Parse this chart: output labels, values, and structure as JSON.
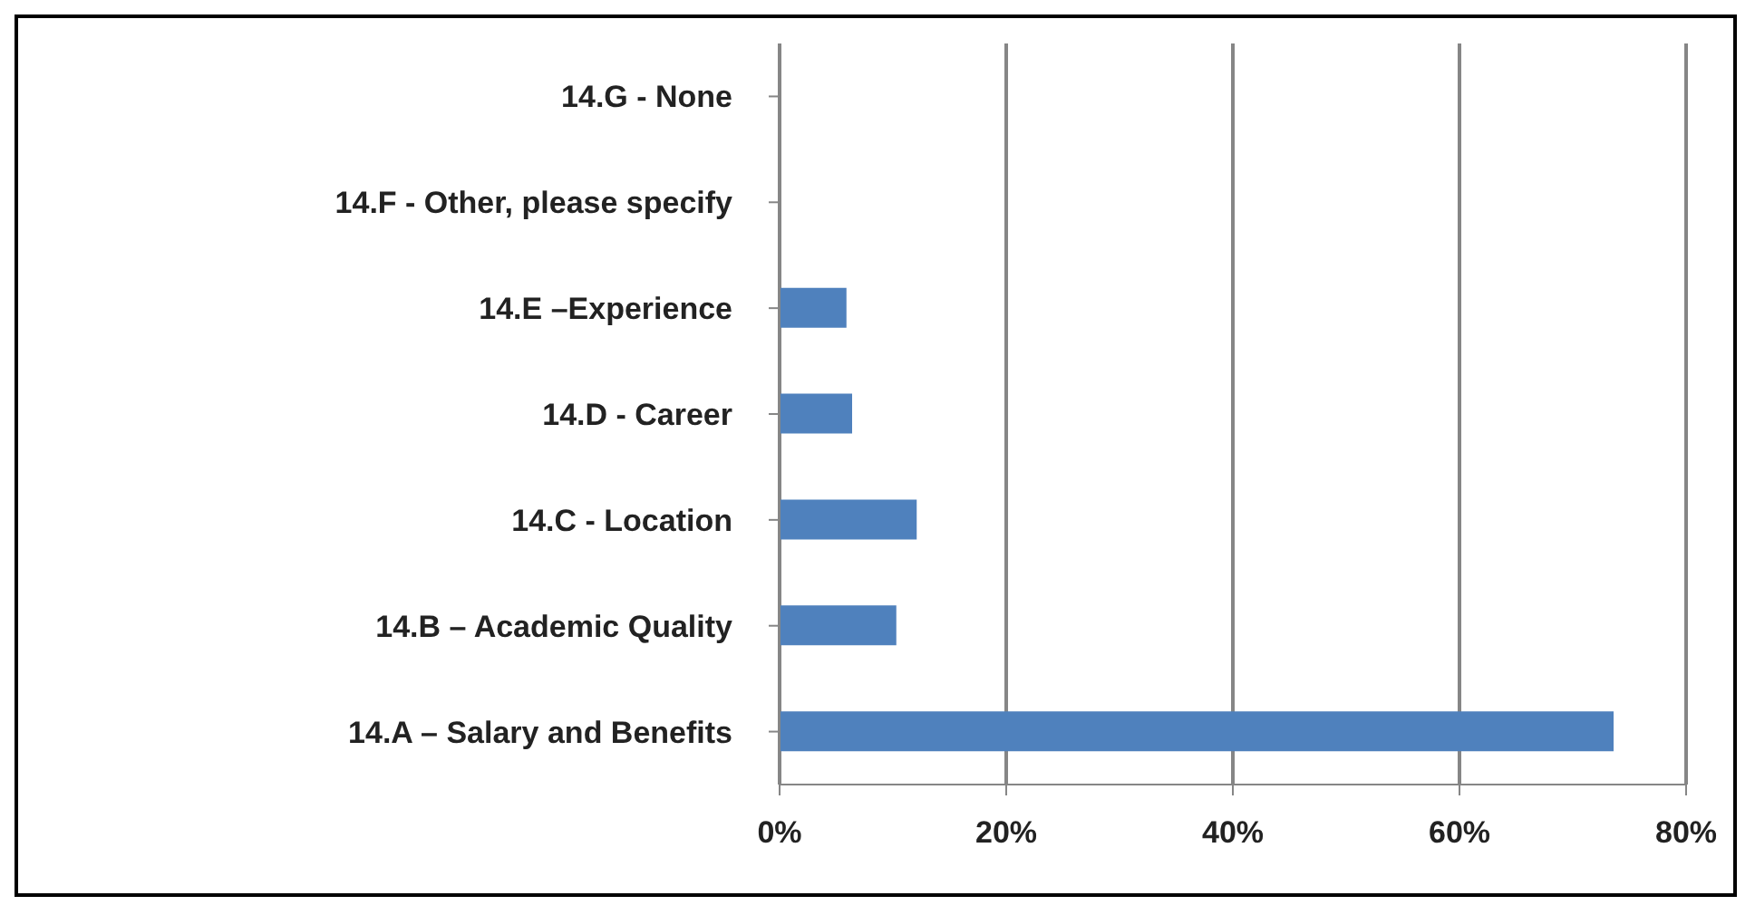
{
  "chart_data": {
    "type": "bar",
    "orientation": "horizontal",
    "categories": [
      "14.G - None",
      "14.F - Other, please specify",
      "14.E –Experience",
      "14.D - Career",
      "14.C - Location",
      "14.B – Academic Quality",
      "14.A – Salary and Benefits"
    ],
    "values": [
      0,
      0,
      5.9,
      6.4,
      12.1,
      10.3,
      73.6
    ],
    "color": "#4f81bd",
    "xlim": [
      0,
      80
    ],
    "xticks": [
      {
        "value": 0,
        "label": "0%"
      },
      {
        "value": 20,
        "label": "20%"
      },
      {
        "value": 40,
        "label": "40%"
      },
      {
        "value": 60,
        "label": "60%"
      },
      {
        "value": 80,
        "label": "80%"
      }
    ],
    "grid": "x",
    "legend": false
  }
}
